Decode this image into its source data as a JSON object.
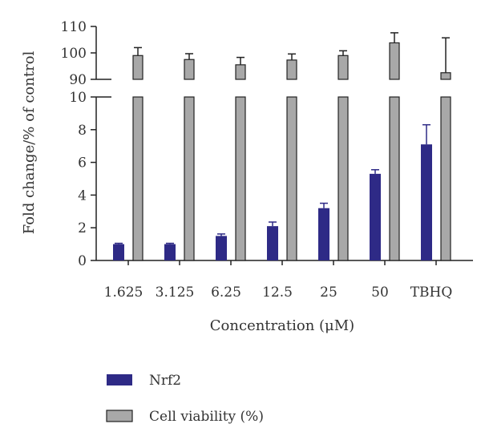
{
  "chart_data": {
    "type": "bar",
    "categories": [
      "1.625",
      "3.125",
      "6.25",
      "12.5",
      "25",
      "50",
      "TBHQ"
    ],
    "xlabel": "Concentration (μM)",
    "ylabel": "Fold change/% of control",
    "y_axis_broken": true,
    "lower_segment": {
      "ylim": [
        0,
        10
      ],
      "ticks": [
        0,
        2,
        4,
        6,
        8,
        10
      ]
    },
    "upper_segment": {
      "ylim": [
        90,
        110
      ],
      "ticks": [
        90,
        100,
        110
      ]
    },
    "series": [
      {
        "name": "Nrf2",
        "color": "#2E2A86",
        "values": [
          1.0,
          1.0,
          1.5,
          2.1,
          3.2,
          5.3,
          7.1
        ],
        "errors": [
          0.05,
          0.05,
          0.12,
          0.25,
          0.3,
          0.25,
          1.2
        ]
      },
      {
        "name": "Cell viability (%)",
        "color": "#A8A8A8",
        "values": [
          99,
          97.5,
          95.5,
          97.3,
          99,
          103.8,
          92.5
        ],
        "errors": [
          3.0,
          2.2,
          2.8,
          2.3,
          1.8,
          3.8,
          13.2
        ]
      }
    ],
    "legend": {
      "position": "bottom-left"
    },
    "grid": false
  }
}
